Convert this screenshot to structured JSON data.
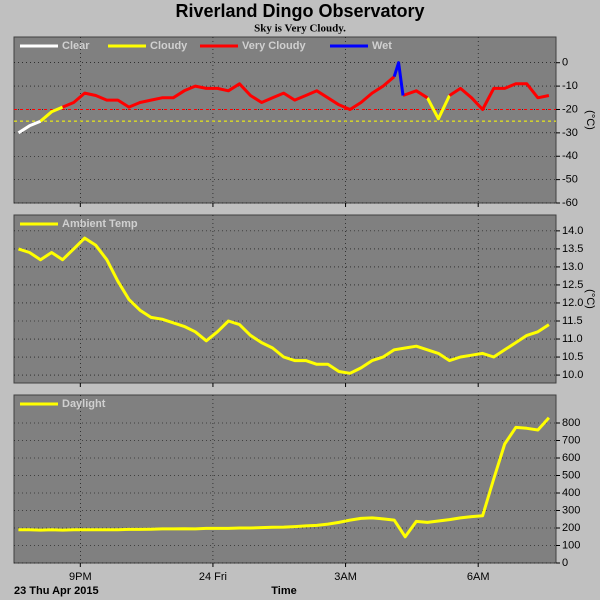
{
  "title": "Riverland Dingo Observatory",
  "subtitle": "Sky is Very Cloudy.",
  "chart_data": [
    {
      "type": "line",
      "y_label": "(°C)",
      "x": [
        19.6,
        19.85,
        20.1,
        20.35,
        20.6,
        20.85,
        21.1,
        21.35,
        21.6,
        21.85,
        22.1,
        22.35,
        22.6,
        22.85,
        23.1,
        23.35,
        23.6,
        23.85,
        24.1,
        24.35,
        24.6,
        24.85,
        25.1,
        25.35,
        25.6,
        25.85,
        26.1,
        26.35,
        26.6,
        26.85,
        27.1,
        27.35,
        27.6,
        27.85,
        28.1,
        28.2,
        28.3,
        28.6,
        28.85,
        29.1,
        29.35,
        29.6,
        29.85,
        30.1,
        30.35,
        30.6,
        30.85,
        31.1,
        31.35,
        31.6
      ],
      "series": [
        {
          "name": "Clear",
          "color": "#ffffff",
          "values": [
            -30,
            -27,
            -25,
            null,
            null,
            null,
            null,
            null,
            null,
            null,
            null,
            null,
            null,
            null,
            null,
            null,
            null,
            null,
            null,
            null,
            null,
            null,
            null,
            null,
            null,
            null,
            null,
            null,
            null,
            null,
            null,
            null,
            null,
            null,
            null,
            null,
            null,
            null,
            null,
            null,
            null,
            null,
            null,
            null,
            null,
            null,
            null,
            null,
            null,
            null
          ]
        },
        {
          "name": "Cloudy",
          "color": "#ffff00",
          "values": [
            null,
            null,
            -25,
            -21,
            -19,
            null,
            null,
            null,
            null,
            null,
            null,
            null,
            null,
            null,
            null,
            null,
            null,
            null,
            null,
            null,
            null,
            null,
            null,
            null,
            null,
            null,
            null,
            null,
            null,
            null,
            null,
            null,
            null,
            null,
            null,
            null,
            null,
            null,
            -15,
            -24,
            -14,
            null,
            null,
            null,
            null,
            null,
            null,
            null,
            null,
            null
          ]
        },
        {
          "name": "Very Cloudy",
          "color": "#ff0000",
          "values": [
            null,
            null,
            null,
            null,
            -19,
            -17,
            -13,
            -14,
            -16,
            -16,
            -19,
            -17,
            -16,
            -15,
            -15,
            -12,
            -10,
            -11,
            -11,
            -12,
            -9,
            -14,
            -17,
            -15,
            -13,
            -16,
            -14,
            -12,
            -15,
            -18,
            -20,
            -17,
            -13,
            -10,
            -6,
            null,
            -14,
            -12,
            -15,
            null,
            -14,
            -11,
            -15,
            -20,
            -11,
            -11,
            -9,
            -9,
            -15,
            -14
          ]
        },
        {
          "name": "Wet",
          "color": "#0000ff",
          "values": [
            null,
            null,
            null,
            null,
            null,
            null,
            null,
            null,
            null,
            null,
            null,
            null,
            null,
            null,
            null,
            null,
            null,
            null,
            null,
            null,
            null,
            null,
            null,
            null,
            null,
            null,
            null,
            null,
            null,
            null,
            null,
            null,
            null,
            null,
            -6,
            0,
            -14,
            null,
            null,
            null,
            null,
            null,
            null,
            null,
            null,
            null,
            null,
            null,
            null,
            null
          ]
        }
      ],
      "thresholds": [
        {
          "value": -20,
          "color": "#ff0000"
        },
        {
          "value": -25,
          "color": "#ffff00"
        }
      ],
      "xlim": [
        19.5,
        31.76
      ],
      "xticks": [
        21,
        24,
        27,
        30
      ],
      "ylim": [
        -60,
        11
      ],
      "yticks": [
        0,
        -10,
        -20,
        -30,
        -40,
        -50,
        -60
      ],
      "grid": true
    },
    {
      "type": "line",
      "y_label": "(°C)",
      "x": [
        19.6,
        19.85,
        20.1,
        20.35,
        20.6,
        20.85,
        21.1,
        21.35,
        21.6,
        21.85,
        22.1,
        22.35,
        22.6,
        22.85,
        23.1,
        23.35,
        23.6,
        23.85,
        24.1,
        24.35,
        24.6,
        24.85,
        25.1,
        25.35,
        25.6,
        25.85,
        26.1,
        26.35,
        26.6,
        26.85,
        27.1,
        27.35,
        27.6,
        27.85,
        28.1,
        28.35,
        28.6,
        28.85,
        29.1,
        29.35,
        29.6,
        29.85,
        30.1,
        30.35,
        30.6,
        30.85,
        31.1,
        31.35,
        31.6
      ],
      "series": [
        {
          "name": "Ambient Temp",
          "color": "#ffff00",
          "values": [
            13.5,
            13.4,
            13.2,
            13.4,
            13.2,
            13.5,
            13.8,
            13.6,
            13.2,
            12.6,
            12.1,
            11.8,
            11.6,
            11.55,
            11.45,
            11.35,
            11.2,
            10.95,
            11.2,
            11.5,
            11.4,
            11.1,
            10.9,
            10.75,
            10.5,
            10.4,
            10.4,
            10.3,
            10.3,
            10.1,
            10.05,
            10.2,
            10.4,
            10.5,
            10.7,
            10.75,
            10.8,
            10.7,
            10.6,
            10.4,
            10.5,
            10.55,
            10.6,
            10.5,
            10.7,
            10.9,
            11.1,
            11.2,
            11.4
          ]
        }
      ],
      "xlim": [
        19.5,
        31.76
      ],
      "xticks": [
        21,
        24,
        27,
        30
      ],
      "ylim": [
        9.78,
        14.44
      ],
      "yticks": [
        {
          "value": 10,
          "label": "10.0"
        },
        10.5,
        {
          "value": 11,
          "label": "11.0"
        },
        11.5,
        {
          "value": 12,
          "label": "12.0"
        },
        12.5,
        {
          "value": 13,
          "label": "13.0"
        },
        13.5,
        {
          "value": 14,
          "label": "14.0"
        }
      ],
      "grid": true
    },
    {
      "type": "line",
      "x_label": "Time",
      "date_label": "23 Thu Apr 2015",
      "x": [
        19.6,
        19.85,
        20.1,
        20.35,
        20.6,
        20.85,
        21.1,
        21.35,
        21.6,
        21.85,
        22.1,
        22.35,
        22.6,
        22.85,
        23.1,
        23.35,
        23.6,
        23.85,
        24.1,
        24.35,
        24.6,
        24.85,
        25.1,
        25.35,
        25.6,
        25.85,
        26.1,
        26.35,
        26.6,
        26.85,
        27.1,
        27.35,
        27.6,
        27.85,
        28.1,
        28.35,
        28.6,
        28.85,
        29.1,
        29.35,
        29.6,
        29.85,
        30.1,
        30.35,
        30.6,
        30.85,
        31.1,
        31.35,
        31.6
      ],
      "series": [
        {
          "name": "Daylight",
          "color": "#ffff00",
          "values": [
            190,
            190,
            188,
            190,
            188,
            190,
            190,
            190,
            190,
            190,
            192,
            192,
            193,
            195,
            195,
            196,
            195,
            198,
            198,
            198,
            200,
            200,
            202,
            204,
            205,
            208,
            212,
            215,
            222,
            232,
            245,
            255,
            258,
            252,
            245,
            150,
            238,
            232,
            240,
            248,
            258,
            265,
            270,
            480,
            680,
            775,
            770,
            760,
            830
          ]
        }
      ],
      "xlim": [
        19.5,
        31.76
      ],
      "xticks": [
        {
          "value": 21,
          "label": "9PM"
        },
        {
          "value": 24,
          "label": "24 Fri"
        },
        {
          "value": 27,
          "label": "3AM"
        },
        {
          "value": 30,
          "label": "6AM"
        }
      ],
      "ylim": [
        0,
        960
      ],
      "yticks": [
        0,
        100,
        200,
        300,
        400,
        500,
        600,
        700,
        800
      ],
      "grid": true
    }
  ]
}
